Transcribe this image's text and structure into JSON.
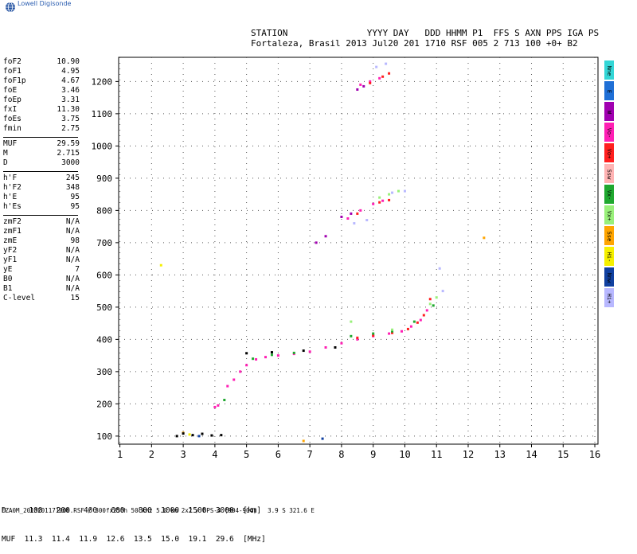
{
  "brand": {
    "name": "Lowell Digisonde",
    "logo_icon": "globe-icon"
  },
  "header": {
    "labels": "STATION               YYYY DAY   DDD HHMM P1  FFS S AXN PPS IGA PS",
    "values": "Fortaleza, Brasil 2013 Jul20 201 1710 RSF 005 2 713 100 +0+ B2"
  },
  "params": {
    "group1": [
      {
        "k": "foF2",
        "v": "10.90"
      },
      {
        "k": "foF1",
        "v": "4.95"
      },
      {
        "k": "foF1p",
        "v": "4.67"
      },
      {
        "k": "foE",
        "v": "3.46"
      },
      {
        "k": "foEp",
        "v": "3.31"
      },
      {
        "k": "fxI",
        "v": "11.30"
      },
      {
        "k": "foEs",
        "v": "3.75"
      },
      {
        "k": "fmin",
        "v": "2.75"
      }
    ],
    "group2": [
      {
        "k": "MUF",
        "v": "29.59"
      },
      {
        "k": "M",
        "v": "2.715"
      },
      {
        "k": "D",
        "v": "3000"
      }
    ],
    "group3": [
      {
        "k": "h'F",
        "v": "245"
      },
      {
        "k": "h'F2",
        "v": "348"
      },
      {
        "k": "h'E",
        "v": "95"
      },
      {
        "k": "h'Es",
        "v": "95"
      }
    ],
    "group4": [
      {
        "k": "zmF2",
        "v": "N/A"
      },
      {
        "k": "zmF1",
        "v": "N/A"
      },
      {
        "k": "zmE",
        "v": "98"
      },
      {
        "k": "yF2",
        "v": "N/A"
      },
      {
        "k": "yF1",
        "v": "N/A"
      },
      {
        "k": "yE",
        "v": "7"
      },
      {
        "k": "B0",
        "v": "N/A"
      },
      {
        "k": "B1",
        "v": "N/A"
      },
      {
        "k": "C-level",
        "v": "15"
      }
    ]
  },
  "legend": {
    "items": [
      {
        "label": "Nne",
        "color": "#33d6d6"
      },
      {
        "label": "E",
        "color": "#1f6fd6"
      },
      {
        "label": "W",
        "color": "#a000b0"
      },
      {
        "label": "Vo-",
        "color": "#ff1fb4"
      },
      {
        "label": "Vo+",
        "color": "#ff1f1f"
      },
      {
        "label": "Ssw",
        "color": "#ffb3b3"
      },
      {
        "label": "Vx-",
        "color": "#1fa82f"
      },
      {
        "label": "Vx+",
        "color": "#99f07a"
      },
      {
        "label": "Sse",
        "color": "#ffa500"
      },
      {
        "label": "Hi-",
        "color": "#f5f000"
      },
      {
        "label": "Nnw",
        "color": "#1040a0"
      },
      {
        "label": "Hi+",
        "color": "#b8b8ff"
      }
    ]
  },
  "muf_table": {
    "row1": "D     100   200   400   600   800  1000  1500  3000  [km]",
    "row2": "MUF  11.3  11.4  11.9  12.6  13.5  15.0  19.1  29.6  [MHz]"
  },
  "footer": "FZA0M_2013201171000.RSF / 300fx256h 50 kHz 5.0 km 2x2 / DPS-4 (904-904)   3.9 S 321.6 E",
  "chart_data": {
    "type": "scatter",
    "title": "",
    "xlabel": "",
    "ylabel": "",
    "xlim": [
      0.96,
      16.1
    ],
    "ylim": [
      75,
      1275
    ],
    "xticks": [
      1,
      2,
      3,
      4,
      5,
      6,
      7,
      8,
      9,
      10,
      11,
      12,
      13,
      14,
      15,
      16
    ],
    "yticks": [
      100,
      200,
      300,
      400,
      500,
      600,
      700,
      800,
      900,
      1000,
      1100,
      1200
    ],
    "grid": true,
    "series": [
      {
        "name": "Vo-",
        "color": "#ff1fb4",
        "points": [
          [
            4.0,
            190
          ],
          [
            4.1,
            195
          ],
          [
            4.4,
            255
          ],
          [
            4.6,
            275
          ],
          [
            4.8,
            300
          ],
          [
            5.0,
            320
          ],
          [
            5.3,
            338
          ],
          [
            5.6,
            345
          ],
          [
            6.0,
            350
          ],
          [
            6.5,
            355
          ],
          [
            7.0,
            362
          ],
          [
            7.5,
            375
          ],
          [
            8.0,
            388
          ],
          [
            8.5,
            400
          ],
          [
            9.0,
            410
          ],
          [
            9.5,
            418
          ],
          [
            9.9,
            425
          ],
          [
            10.2,
            440
          ],
          [
            10.5,
            460
          ],
          [
            10.7,
            490
          ],
          [
            8.2,
            775
          ],
          [
            8.6,
            800
          ],
          [
            9.0,
            820
          ],
          [
            9.3,
            830
          ],
          [
            8.6,
            1190
          ],
          [
            8.9,
            1200
          ],
          [
            9.2,
            1210
          ]
        ]
      },
      {
        "name": "Vo+",
        "color": "#ff1f1f",
        "points": [
          [
            8.5,
            405
          ],
          [
            9.0,
            412
          ],
          [
            9.6,
            420
          ],
          [
            10.1,
            432
          ],
          [
            10.4,
            452
          ],
          [
            10.6,
            475
          ],
          [
            10.8,
            525
          ],
          [
            8.5,
            790
          ],
          [
            9.2,
            825
          ],
          [
            9.5,
            832
          ],
          [
            8.9,
            1195
          ],
          [
            9.3,
            1215
          ],
          [
            9.5,
            1225
          ]
        ]
      },
      {
        "name": "Vx-",
        "color": "#1fa82f",
        "points": [
          [
            4.3,
            212
          ],
          [
            5.2,
            340
          ],
          [
            5.8,
            352
          ],
          [
            6.5,
            358
          ],
          [
            8.3,
            410
          ],
          [
            9.0,
            418
          ],
          [
            9.6,
            425
          ],
          [
            10.3,
            455
          ],
          [
            10.9,
            505
          ]
        ]
      },
      {
        "name": "Vx+",
        "color": "#99f07a",
        "points": [
          [
            10.8,
            510
          ],
          [
            11.0,
            530
          ],
          [
            9.2,
            840
          ],
          [
            9.5,
            850
          ],
          [
            9.8,
            860
          ],
          [
            8.3,
            455
          ],
          [
            9.6,
            430
          ]
        ]
      },
      {
        "name": "W",
        "color": "#a000b0",
        "points": [
          [
            8.0,
            780
          ],
          [
            8.3,
            790
          ],
          [
            7.5,
            720
          ],
          [
            7.2,
            700
          ],
          [
            8.5,
            1175
          ],
          [
            8.7,
            1185
          ]
        ]
      },
      {
        "name": "Hi+",
        "color": "#b8b8ff",
        "points": [
          [
            8.4,
            760
          ],
          [
            8.8,
            770
          ],
          [
            9.6,
            855
          ],
          [
            10.0,
            860
          ],
          [
            11.2,
            550
          ],
          [
            11.1,
            620
          ],
          [
            9.1,
            1245
          ],
          [
            9.4,
            1255
          ]
        ]
      },
      {
        "name": "Sse",
        "color": "#ffa500",
        "points": [
          [
            12.5,
            715
          ],
          [
            3.0,
            110
          ],
          [
            6.8,
            85
          ]
        ]
      },
      {
        "name": "Hi-",
        "color": "#f5f000",
        "points": [
          [
            2.3,
            630
          ],
          [
            3.2,
            105
          ]
        ]
      },
      {
        "name": "Nnw",
        "color": "#1040a0",
        "points": [
          [
            3.5,
            100
          ],
          [
            7.4,
            92
          ]
        ]
      },
      {
        "name": "black",
        "color": "#000000",
        "points": [
          [
            5.0,
            357
          ],
          [
            5.8,
            360
          ],
          [
            6.8,
            365
          ],
          [
            7.8,
            375
          ],
          [
            2.8,
            100
          ],
          [
            3.0,
            108
          ],
          [
            3.3,
            103
          ],
          [
            3.6,
            107
          ],
          [
            3.9,
            102
          ],
          [
            4.2,
            103
          ]
        ]
      }
    ]
  }
}
